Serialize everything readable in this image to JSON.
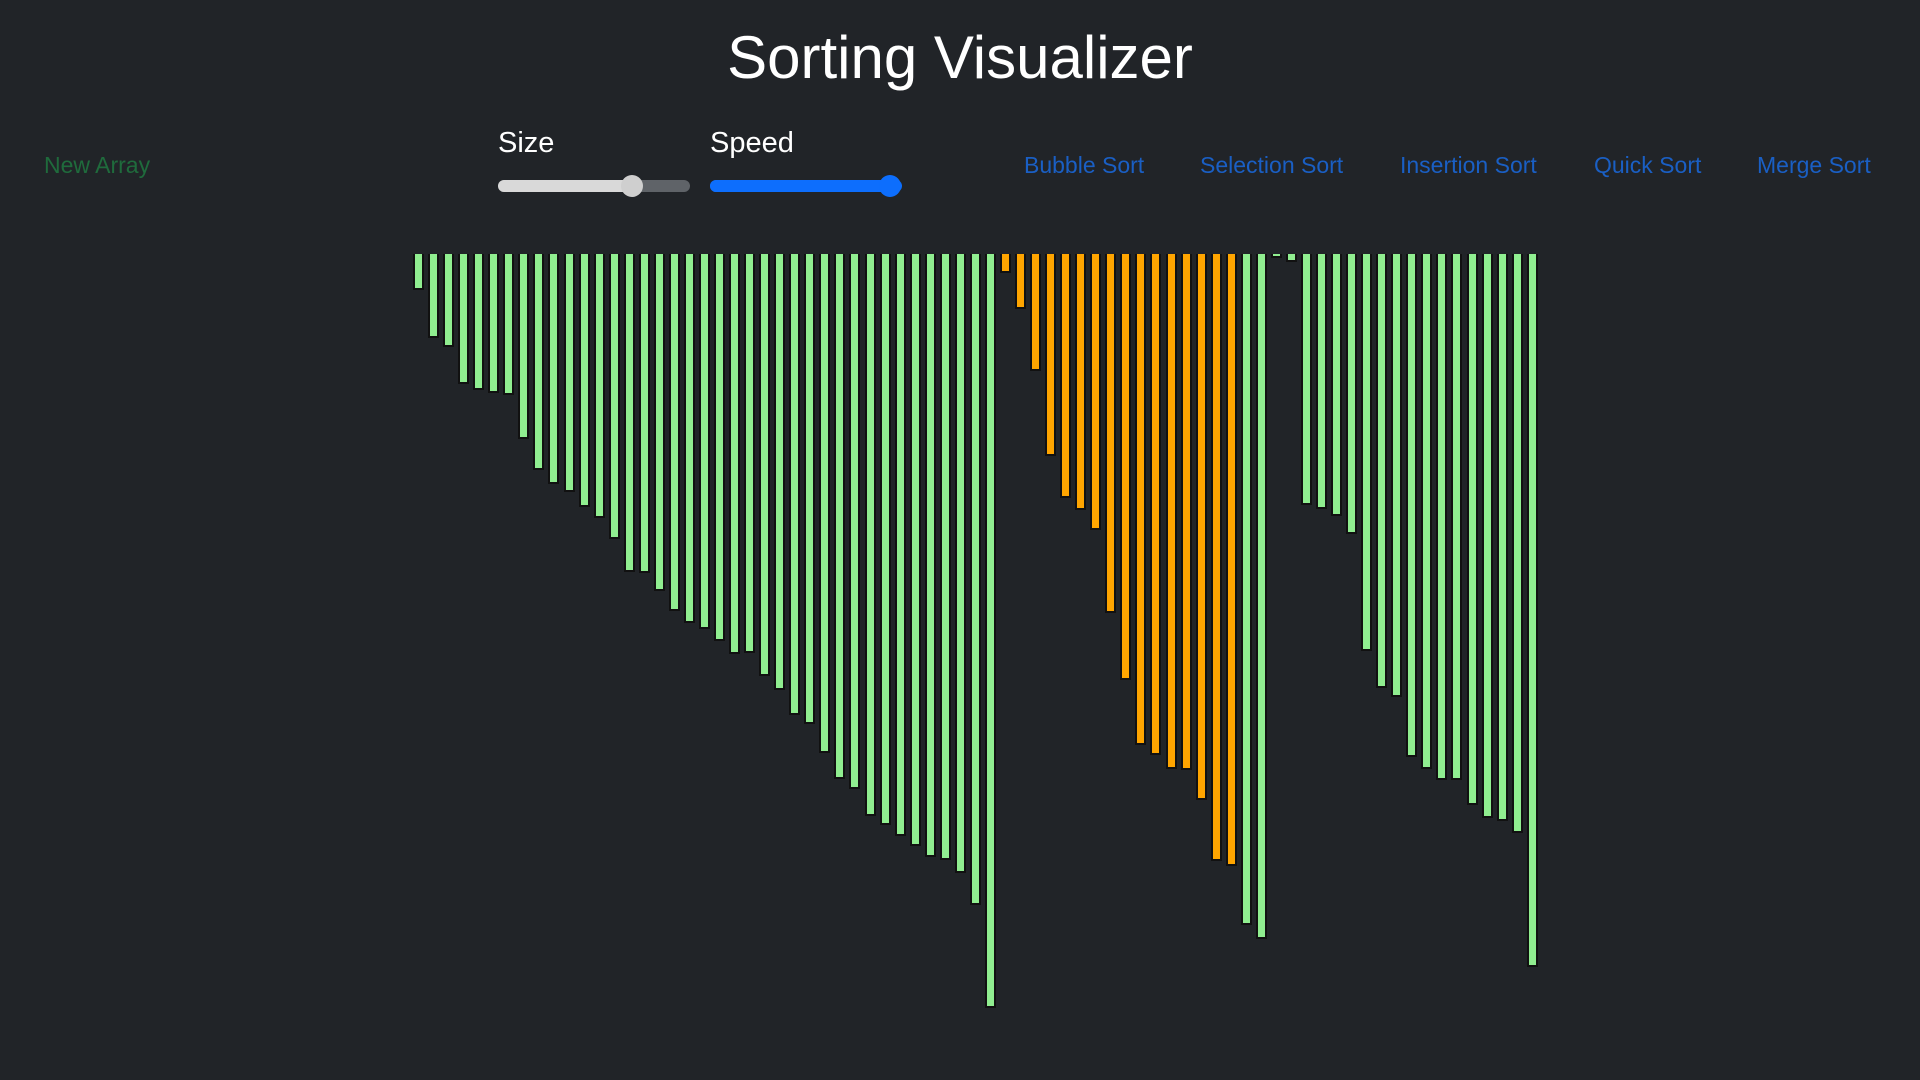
{
  "header": {
    "title": "Sorting Visualizer"
  },
  "controls": {
    "new_array": "New Array",
    "size": {
      "label": "Size",
      "value": 0.7
    },
    "speed": {
      "label": "Speed",
      "value": 0.94
    }
  },
  "algorithms": [
    "Bubble Sort",
    "Selection Sort",
    "Insertion Sort",
    "Quick Sort",
    "Merge Sort"
  ],
  "colors": {
    "background": "#212428",
    "bar_sorted": "#90ee90",
    "bar_active": "#ffa500",
    "link": "#1a5fc4",
    "new_array": "#1f6b3c"
  },
  "array": {
    "values": [
      36,
      84,
      93,
      130,
      136,
      139,
      141,
      185,
      216,
      230,
      238,
      253,
      264,
      285,
      318,
      319,
      337,
      357,
      369,
      375,
      387,
      400,
      399,
      422,
      436,
      461,
      470,
      499,
      525,
      535,
      562,
      571,
      582,
      592,
      603,
      606,
      619,
      651,
      754,
      19,
      55,
      117,
      202,
      244,
      256,
      276,
      359,
      426,
      491,
      501,
      515,
      516,
      546,
      607,
      612,
      671,
      685,
      3,
      8,
      251,
      255,
      262,
      280,
      397,
      434,
      443,
      503,
      515,
      526,
      526,
      551,
      564,
      567,
      579,
      713
    ],
    "states": [
      "g",
      "g",
      "g",
      "g",
      "g",
      "g",
      "g",
      "g",
      "g",
      "g",
      "g",
      "g",
      "g",
      "g",
      "g",
      "g",
      "g",
      "g",
      "g",
      "g",
      "g",
      "g",
      "g",
      "g",
      "g",
      "g",
      "g",
      "g",
      "g",
      "g",
      "g",
      "g",
      "g",
      "g",
      "g",
      "g",
      "g",
      "g",
      "g",
      "o",
      "o",
      "o",
      "o",
      "o",
      "o",
      "o",
      "o",
      "o",
      "o",
      "o",
      "o",
      "o",
      "o",
      "o",
      "o",
      "g",
      "g",
      "g",
      "g",
      "g",
      "g",
      "g",
      "g",
      "g",
      "g",
      "g",
      "g",
      "g",
      "g",
      "g",
      "g",
      "g",
      "g",
      "g",
      "g"
    ]
  }
}
